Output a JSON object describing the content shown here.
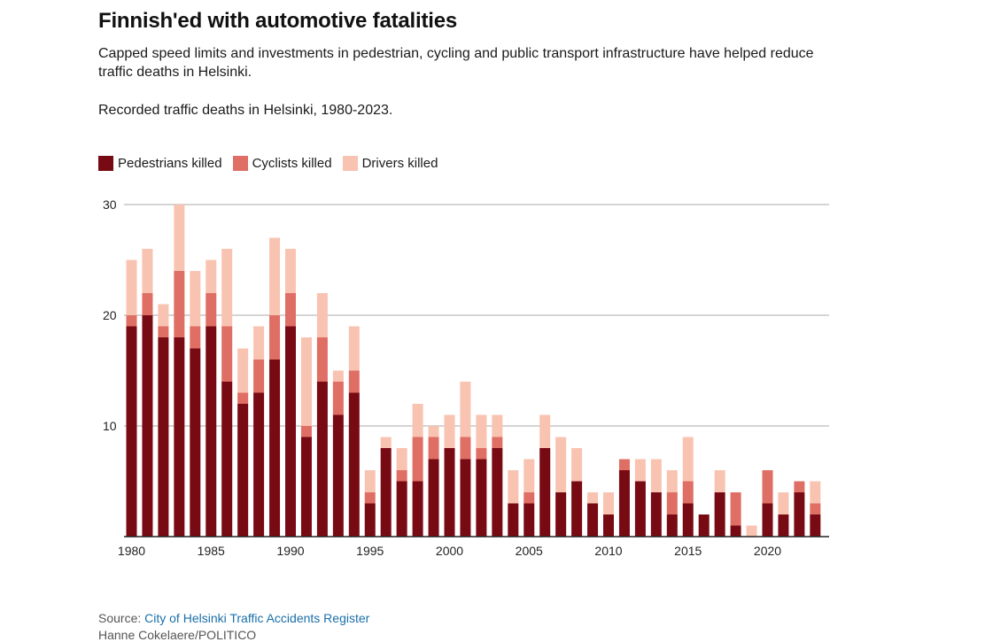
{
  "header": {
    "title": "Finnish'ed with automotive fatalities",
    "subtitle": "Capped speed limits and investments in pedestrian, cycling and public transport infrastructure have helped reduce traffic deaths in Helsinki.",
    "caption": "Recorded traffic deaths in Helsinki, 1980-2023."
  },
  "colors": {
    "pedestrians": "#780a14",
    "cyclists": "#df6e64",
    "drivers": "#f9c3b2",
    "grid": "#aaaaaa",
    "axis": "#222222"
  },
  "chart_data": {
    "type": "bar",
    "stacked": true,
    "x": [
      1980,
      1981,
      1982,
      1983,
      1984,
      1985,
      1986,
      1987,
      1988,
      1989,
      1990,
      1991,
      1992,
      1993,
      1994,
      1995,
      1996,
      1997,
      1998,
      1999,
      2000,
      2001,
      2002,
      2003,
      2004,
      2005,
      2006,
      2007,
      2008,
      2009,
      2010,
      2011,
      2012,
      2013,
      2014,
      2015,
      2016,
      2017,
      2018,
      2019,
      2020,
      2021,
      2022,
      2023
    ],
    "series": [
      {
        "name": "Pedestrians killed",
        "values": [
          19,
          20,
          18,
          18,
          17,
          19,
          14,
          12,
          13,
          16,
          19,
          9,
          14,
          11,
          13,
          3,
          8,
          5,
          5,
          7,
          8,
          7,
          7,
          8,
          3,
          3,
          8,
          4,
          5,
          3,
          2,
          6,
          5,
          4,
          2,
          3,
          2,
          4,
          1,
          0,
          3,
          2,
          4,
          2
        ]
      },
      {
        "name": "Cyclists killed",
        "values": [
          1,
          2,
          1,
          6,
          2,
          3,
          5,
          1,
          3,
          4,
          3,
          1,
          4,
          3,
          2,
          1,
          0,
          1,
          4,
          2,
          0,
          2,
          1,
          1,
          0,
          1,
          0,
          0,
          0,
          0,
          0,
          1,
          0,
          0,
          2,
          2,
          0,
          0,
          3,
          0,
          3,
          0,
          1,
          1
        ]
      },
      {
        "name": "Drivers killed",
        "values": [
          5,
          4,
          2,
          6,
          5,
          3,
          7,
          4,
          3,
          7,
          4,
          8,
          4,
          1,
          4,
          2,
          1,
          2,
          3,
          1,
          3,
          5,
          3,
          2,
          3,
          3,
          3,
          5,
          3,
          1,
          2,
          0,
          2,
          3,
          2,
          4,
          0,
          2,
          0,
          1,
          0,
          2,
          0,
          2
        ]
      }
    ],
    "ylim": [
      0,
      30
    ],
    "yticks": [
      10,
      20,
      30
    ],
    "xticks": [
      1980,
      1985,
      1990,
      1995,
      2000,
      2005,
      2010,
      2015,
      2020
    ],
    "grid": true,
    "legend": "top-left"
  },
  "footer": {
    "source_prefix": "Source: ",
    "source_link": "City of Helsinki Traffic Accidents Register",
    "credit": "Hanne Cokelaere/POLITICO"
  }
}
